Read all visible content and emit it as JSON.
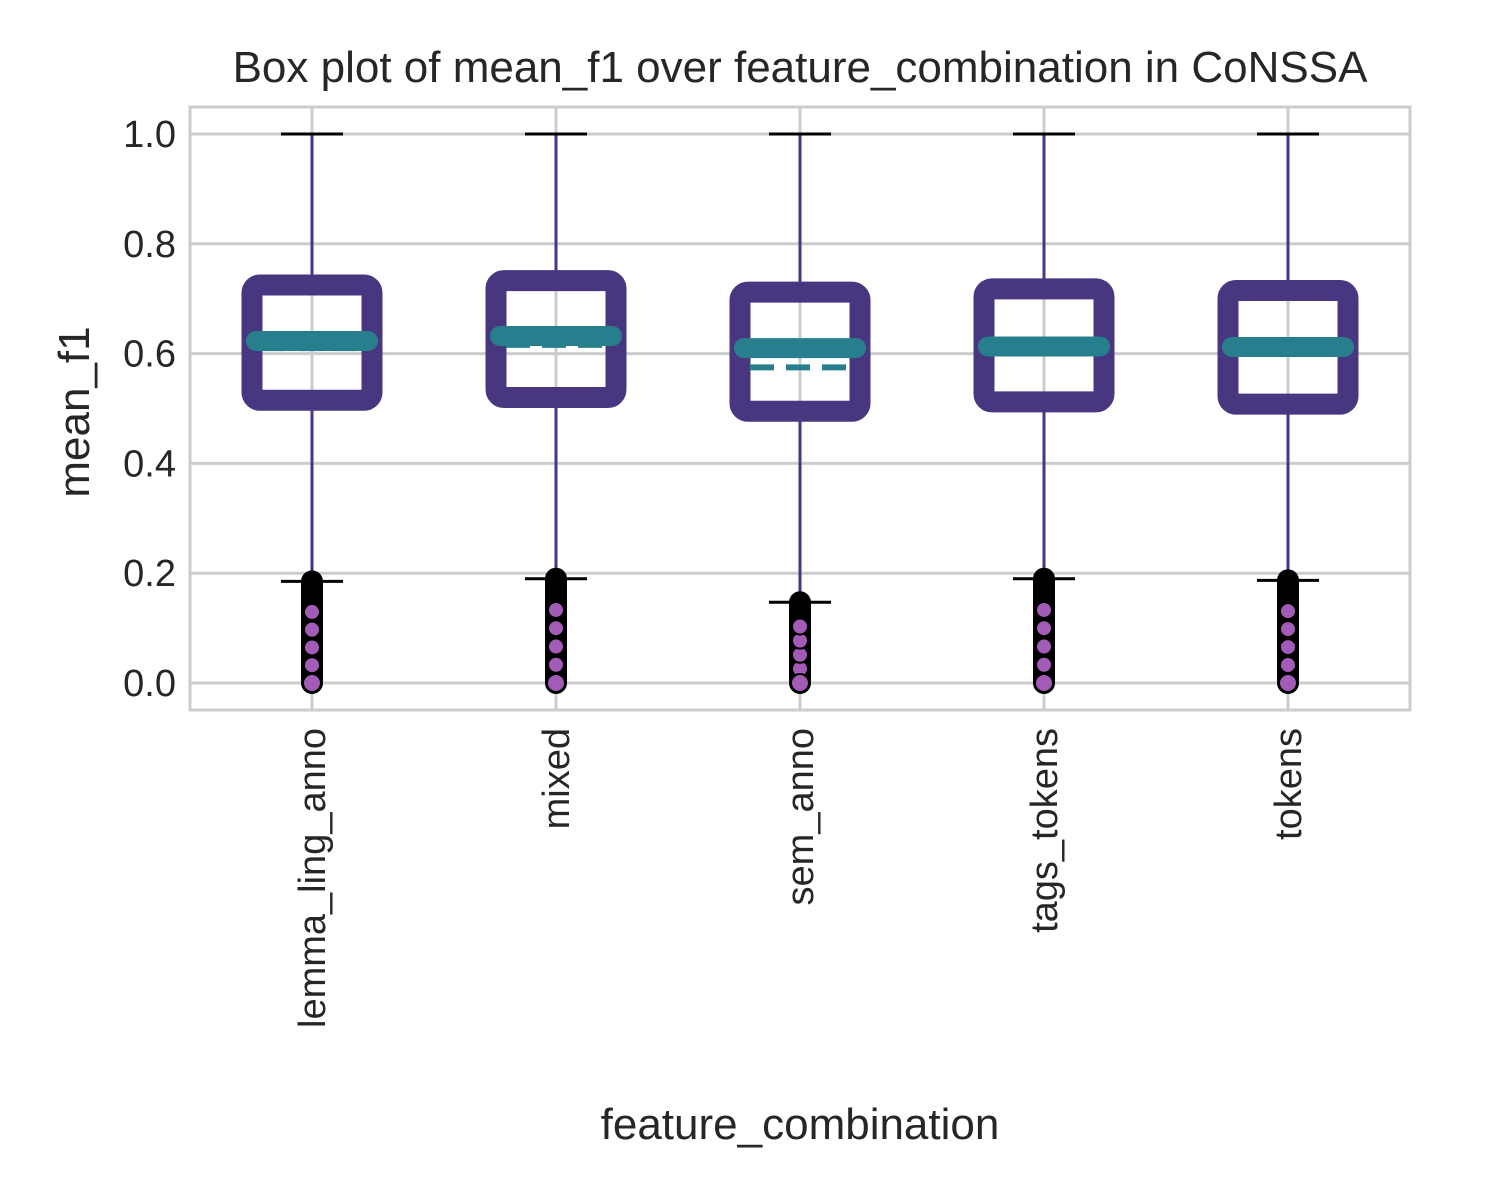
{
  "chart_data": {
    "type": "box",
    "title": "Box plot of mean_f1 over feature_combination in CoNSSA",
    "xlabel": "feature_combination",
    "ylabel": "mean_f1",
    "ylim": [
      -0.05,
      1.05
    ],
    "yticks": [
      "0.0",
      "0.2",
      "0.4",
      "0.6",
      "0.8",
      "1.0"
    ],
    "ytick_values": [
      0.0,
      0.2,
      0.4,
      0.6,
      0.8,
      1.0
    ],
    "grid": true,
    "categories": [
      "lemma_ling_anno",
      "mixed",
      "sem_anno",
      "tags_tokens",
      "tokens"
    ],
    "boxes": [
      {
        "category": "lemma_ling_anno",
        "whisker_low": 0.185,
        "q1": 0.515,
        "median": 0.623,
        "mean": 0.61,
        "q3": 0.725,
        "whisker_high": 1.0,
        "outliers_max": 0.185,
        "outliers_min": 0.0
      },
      {
        "category": "mixed",
        "whisker_low": 0.19,
        "q1": 0.52,
        "median": 0.632,
        "mean": 0.616,
        "q3": 0.733,
        "whisker_high": 1.0,
        "outliers_max": 0.19,
        "outliers_min": 0.0
      },
      {
        "category": "sem_anno",
        "whisker_low": 0.147,
        "q1": 0.495,
        "median": 0.61,
        "mean": 0.575,
        "q3": 0.712,
        "whisker_high": 1.0,
        "outliers_max": 0.147,
        "outliers_min": 0.0
      },
      {
        "category": "tags_tokens",
        "whisker_low": 0.19,
        "q1": 0.512,
        "median": 0.613,
        "mean": 0.613,
        "q3": 0.718,
        "whisker_high": 1.0,
        "outliers_max": 0.19,
        "outliers_min": 0.0
      },
      {
        "category": "tokens",
        "whisker_low": 0.187,
        "q1": 0.508,
        "median": 0.612,
        "mean": 0.612,
        "q3": 0.715,
        "whisker_high": 1.0,
        "outliers_max": 0.187,
        "outliers_min": 0.0
      }
    ],
    "colors": {
      "box": "#483681",
      "median": "#277f8e",
      "whisker": "#483681",
      "cap": "#000000",
      "outlier_edge": "#000000",
      "outlier_fill": "#a25bb7",
      "grid": "#cccccc"
    }
  }
}
